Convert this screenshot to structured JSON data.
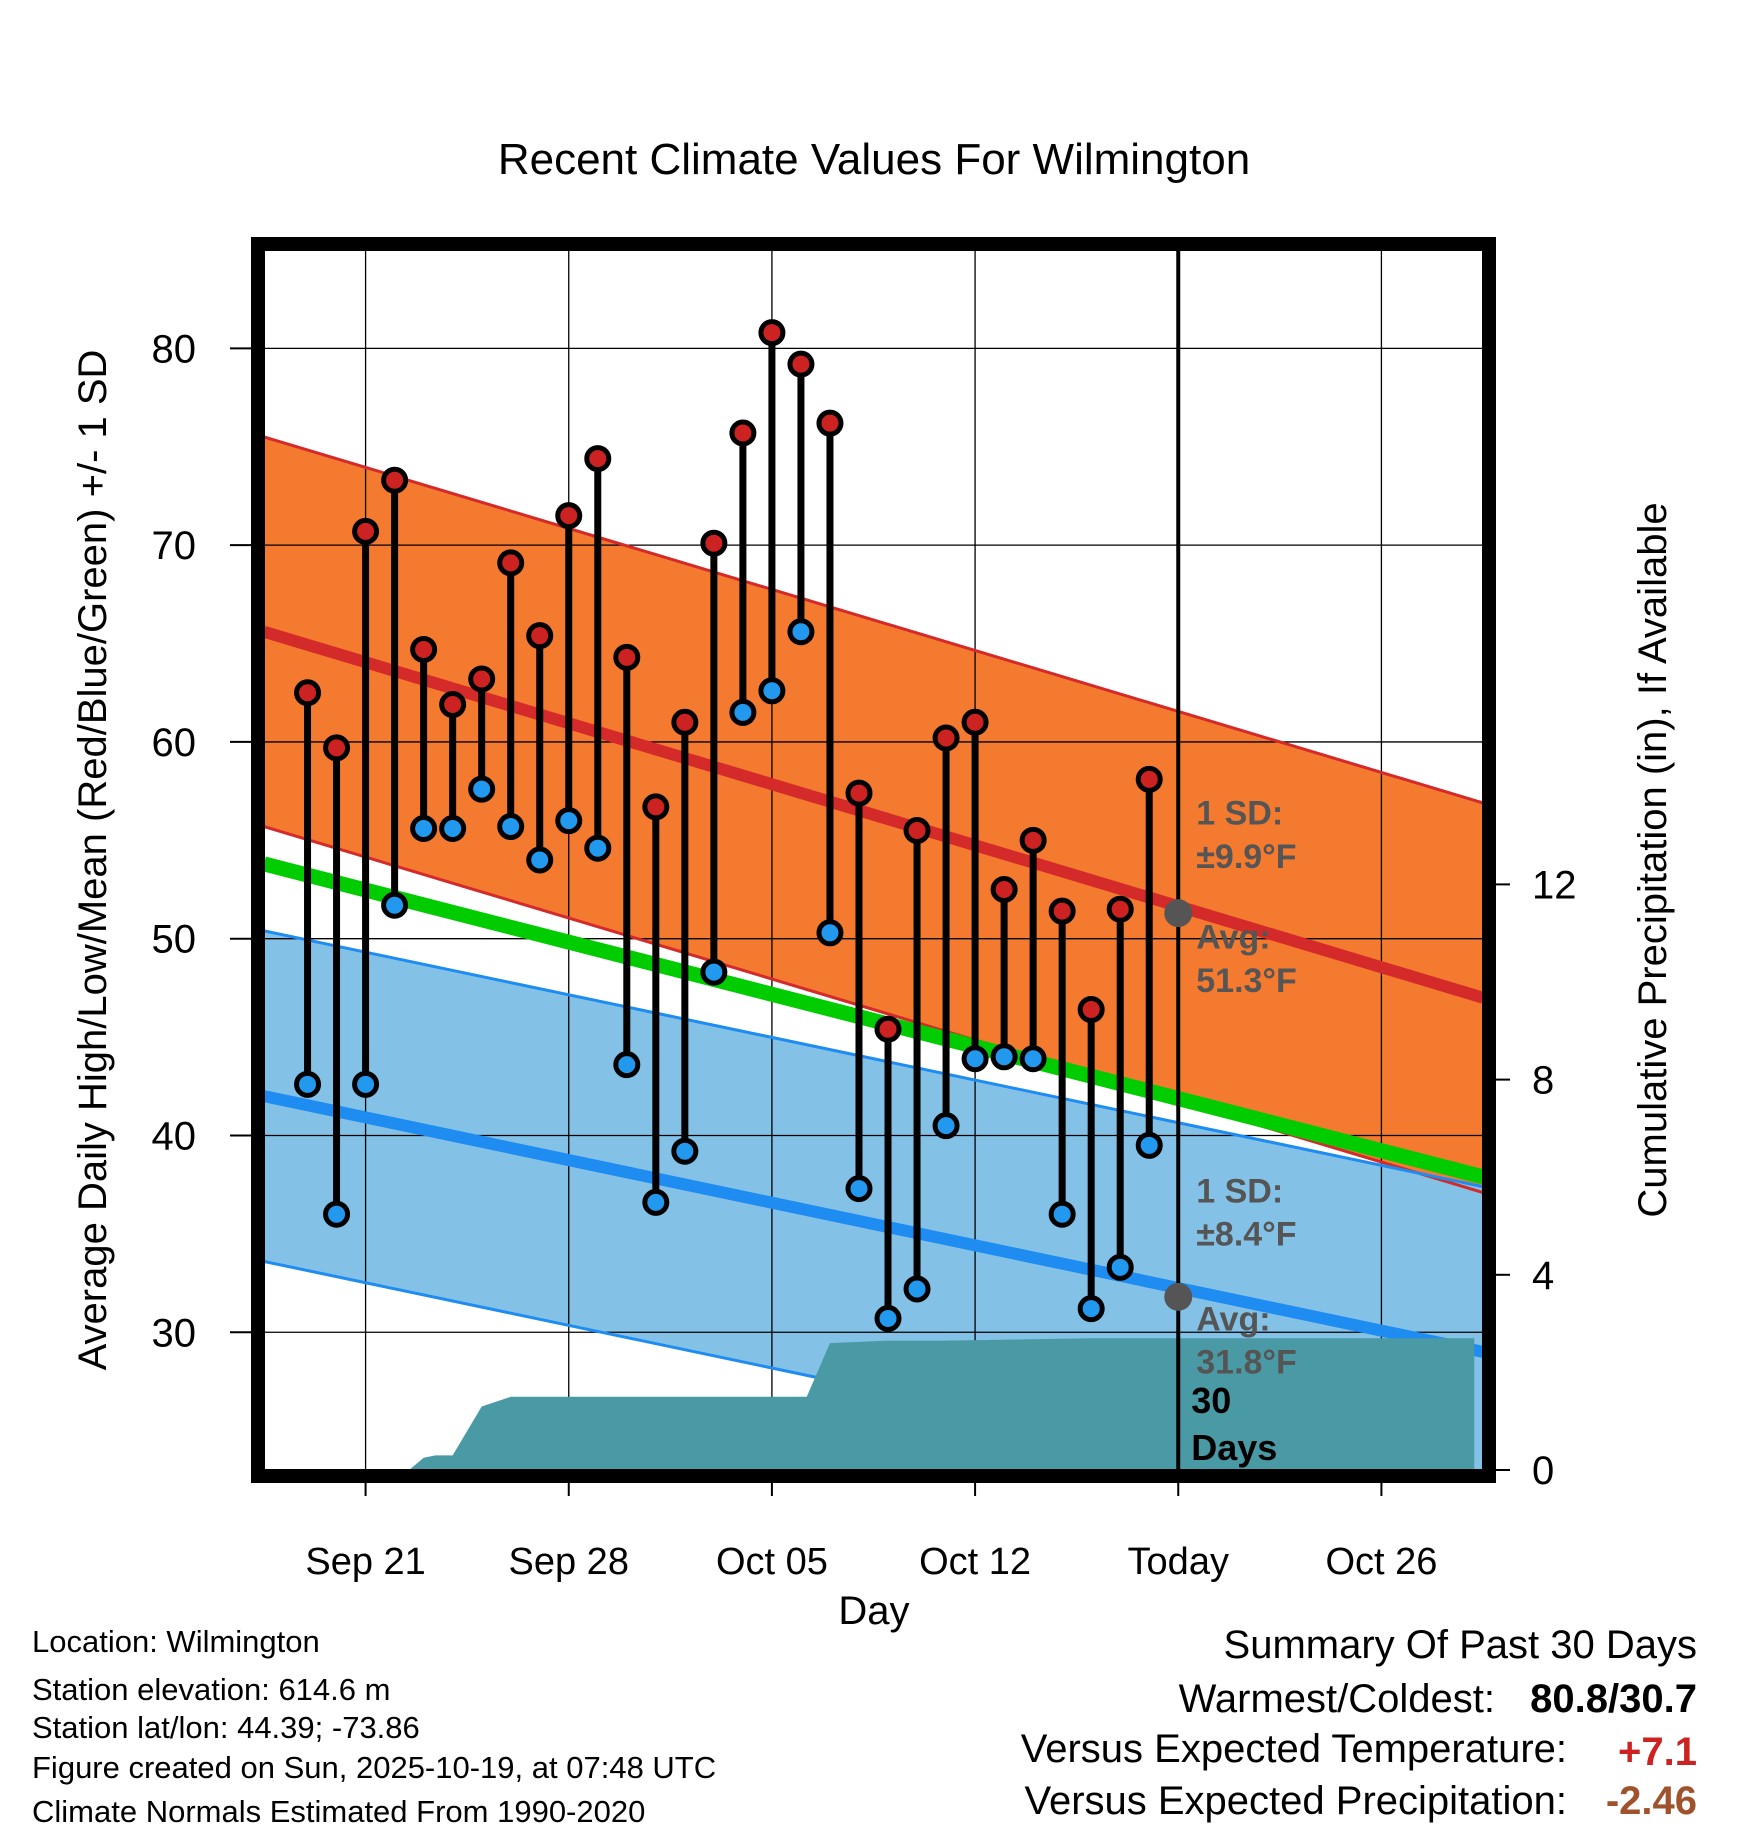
{
  "chart_data": {
    "type": "line",
    "title": "Recent Climate Values For Wilmington",
    "xlabel": "Day",
    "ylabel": "Average Daily High/Low/Mean (Red/Blue/Green) +/- 1 SD",
    "y2label": "Cumulative Precipitation (in), If Available",
    "x_range": [
      -3.5,
      38.5
    ],
    "ylim": [
      23,
      85
    ],
    "y2lim": [
      0,
      25
    ],
    "x_ticks": [
      {
        "day": 0,
        "label": "Sep 21"
      },
      {
        "day": 7,
        "label": "Sep 28"
      },
      {
        "day": 14,
        "label": "Oct 05"
      },
      {
        "day": 21,
        "label": "Oct 12"
      },
      {
        "day": 28,
        "label": "Today"
      },
      {
        "day": 35,
        "label": "Oct 26"
      }
    ],
    "y_ticks": [
      30,
      40,
      50,
      60,
      70,
      80
    ],
    "y2_ticks": [
      {
        "value": 0,
        "label": "0"
      },
      {
        "value": 4,
        "label": "4"
      },
      {
        "value": 8,
        "label": "8"
      },
      {
        "value": 12,
        "label": "12"
      }
    ],
    "today_day": 28,
    "normals": {
      "high_mean": [
        65.6,
        47.0
      ],
      "high_sd": 9.9,
      "low_mean": [
        42.0,
        29.0
      ],
      "low_sd": 8.4,
      "mean_line": [
        53.8,
        37.9
      ]
    },
    "series": [
      {
        "name": "Daily High",
        "color": "#cc2222",
        "days": [
          -2,
          -1,
          0,
          1,
          2,
          3,
          4,
          5,
          6,
          7,
          8,
          9,
          10,
          11,
          12,
          13,
          14,
          15,
          16,
          17,
          18,
          19,
          20,
          21,
          22,
          23,
          24,
          25,
          26,
          27
        ],
        "values": [
          62.5,
          59.7,
          70.7,
          73.3,
          64.7,
          61.9,
          63.2,
          69.1,
          65.4,
          71.5,
          74.4,
          64.3,
          56.7,
          61.0,
          70.1,
          75.7,
          80.8,
          79.2,
          76.2,
          57.4,
          45.4,
          55.5,
          60.2,
          61.0,
          52.5,
          55.0,
          51.4,
          46.4,
          51.5,
          58.1
        ]
      },
      {
        "name": "Daily Low",
        "color": "#2299ee",
        "days": [
          -2,
          -1,
          0,
          1,
          2,
          3,
          4,
          5,
          6,
          7,
          8,
          9,
          10,
          11,
          12,
          13,
          14,
          15,
          16,
          17,
          18,
          19,
          20,
          21,
          22,
          23,
          24,
          25,
          26,
          27
        ],
        "values": [
          42.6,
          36.0,
          42.6,
          51.7,
          55.6,
          55.6,
          57.6,
          55.7,
          54.0,
          56.0,
          54.6,
          43.6,
          36.6,
          39.2,
          48.3,
          61.5,
          62.6,
          65.6,
          50.3,
          37.3,
          30.7,
          32.2,
          40.5,
          43.9,
          44.0,
          43.9,
          36.0,
          31.2,
          33.3,
          39.5
        ]
      },
      {
        "name": "Cumulative Precipitation",
        "color": "#4a9aa5",
        "days": [
          1.5,
          2.0,
          2.4,
          3.0,
          4.0,
          5.0,
          6.0,
          8.0,
          10.0,
          13.0,
          14.5,
          15.2,
          16.0,
          18.0,
          20.0,
          25.0,
          30.0,
          38.2
        ],
        "values": [
          0.0,
          0.25,
          0.3,
          0.3,
          1.3,
          1.5,
          1.5,
          1.5,
          1.5,
          1.5,
          1.5,
          1.5,
          2.6,
          2.65,
          2.65,
          2.7,
          2.7,
          2.7
        ]
      }
    ],
    "annotations": {
      "high_sd_line1": "1 SD:",
      "high_sd_line2": "±9.9°F",
      "high_avg_line1": "Avg:",
      "high_avg_line2": "51.3°F",
      "low_sd_line1": "1 SD:",
      "low_sd_line2": "±8.4°F",
      "low_avg_line1": "Avg:",
      "low_avg_line2": "31.8°F",
      "days_line1": "30",
      "days_line2": "Days"
    },
    "high_today_avg": 51.3,
    "low_today_avg": 31.8
  },
  "info": {
    "location": "Location: Wilmington",
    "elevation": "Station elevation: 614.6 m",
    "latlon": "Station lat/lon: 44.39; -73.86",
    "created": "Figure created on Sun, 2025-10-19, at 07:48 UTC",
    "normals": "Climate Normals Estimated From 1990-2020"
  },
  "summary": {
    "title": "Summary Of Past 30 Days",
    "warmest_label": "Warmest/Coldest:",
    "warmest_value": "80.8/30.7",
    "temp_label": "Versus Expected Temperature:",
    "temp_value": "+7.1",
    "precip_label": "Versus Expected Precipitation:",
    "precip_value": "-2.46",
    "temp_color": "#cc2222",
    "precip_color": "#a0522d"
  }
}
